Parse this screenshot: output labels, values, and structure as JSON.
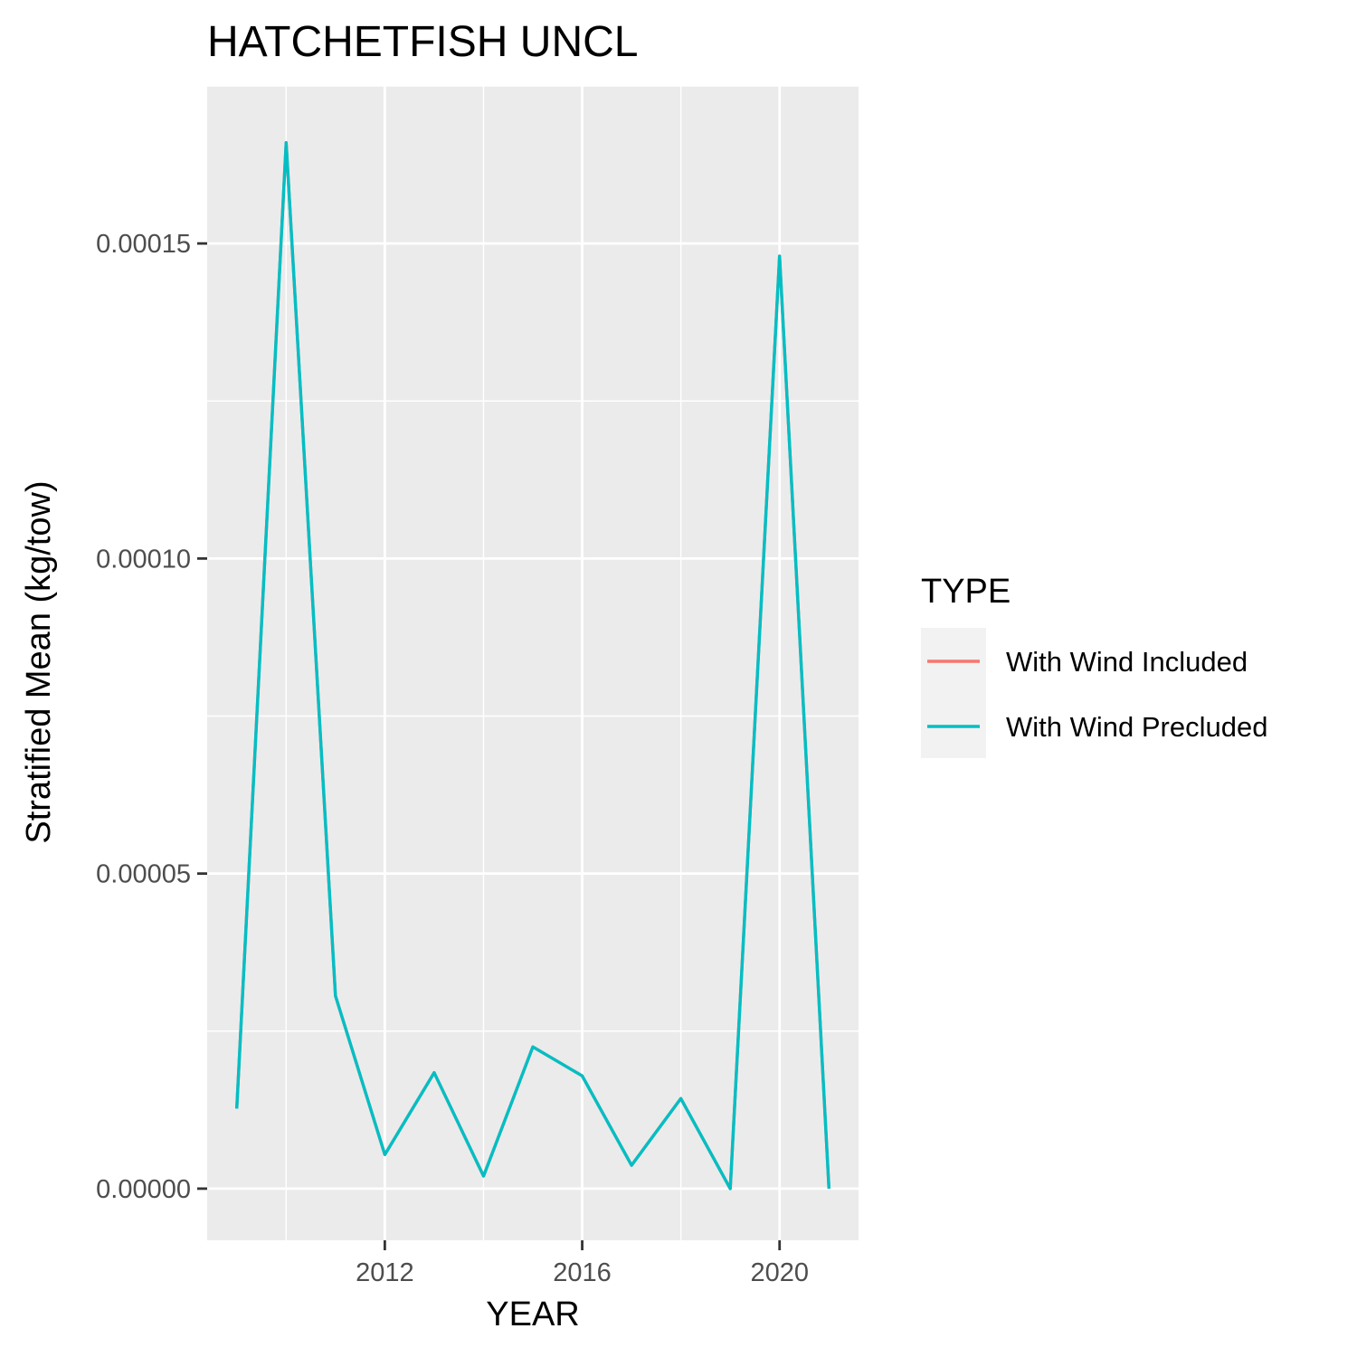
{
  "chart_data": {
    "type": "line",
    "title": "HATCHETFISH UNCL",
    "xlabel": "YEAR",
    "ylabel": "Stratified Mean (kg/tow)",
    "xlim": [
      2008.4,
      2021.6
    ],
    "ylim": [
      -8.2e-06,
      0.000175
    ],
    "x_ticks": [
      2012,
      2016,
      2020
    ],
    "x_tick_labels": [
      "2012",
      "2016",
      "2020"
    ],
    "y_ticks": [
      0,
      5e-05,
      0.0001,
      0.00015
    ],
    "y_tick_labels": [
      "0.00000",
      "0.00005",
      "0.00010",
      "0.00015"
    ],
    "grid": true,
    "legend": {
      "title": "TYPE",
      "position": "right",
      "entries": [
        "With Wind Included",
        "With Wind Precluded"
      ]
    },
    "series": [
      {
        "name": "With Wind Included",
        "color": "#F8766D",
        "x": [
          2009,
          2010,
          2011,
          2012,
          2013,
          2014,
          2015,
          2016,
          2017,
          2018,
          2019,
          2020,
          2021
        ],
        "y": [
          1.27e-05,
          0.000166,
          3.06e-05,
          5.4e-06,
          1.84e-05,
          2e-06,
          2.25e-05,
          1.79e-05,
          3.7e-06,
          1.43e-05,
          0.0,
          0.000148,
          0.0
        ]
      },
      {
        "name": "With Wind Precluded",
        "color": "#00BFC4",
        "x": [
          2009,
          2010,
          2011,
          2012,
          2013,
          2014,
          2015,
          2016,
          2017,
          2018,
          2019,
          2020,
          2021
        ],
        "y": [
          1.27e-05,
          0.000166,
          3.06e-05,
          5.4e-06,
          1.84e-05,
          2e-06,
          2.25e-05,
          1.79e-05,
          3.7e-06,
          1.43e-05,
          0.0,
          0.000148,
          0.0
        ]
      }
    ],
    "colors": {
      "panel_background": "#EBEBEB",
      "grid_line": "#FFFFFF",
      "legend_key_background": "#F2F2F2",
      "tick_text": "#4D4D4D"
    }
  }
}
